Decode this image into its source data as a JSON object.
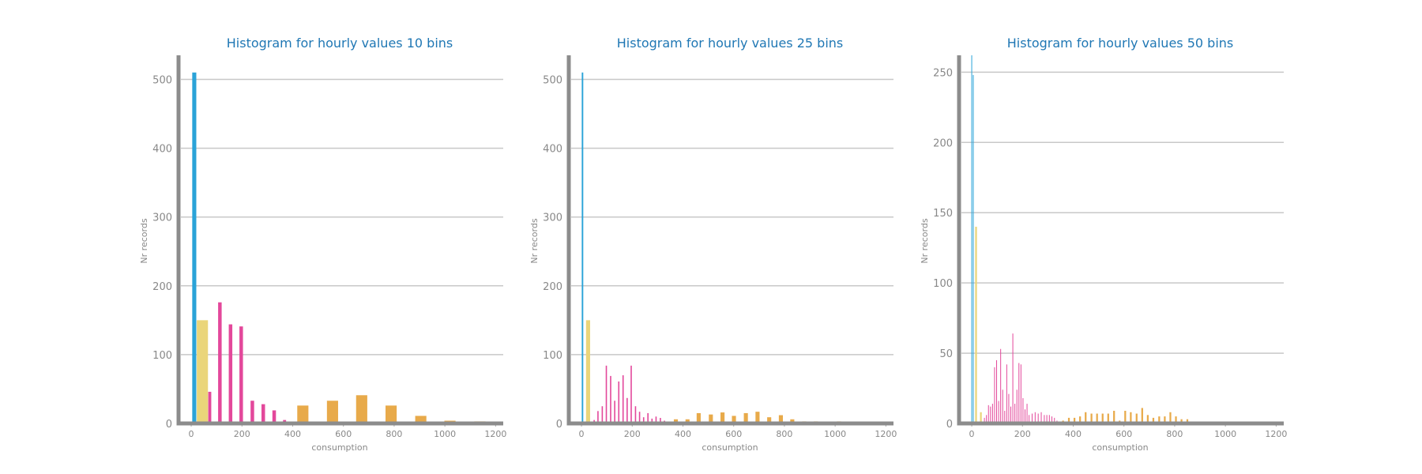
{
  "chart_data": [
    {
      "type": "bar",
      "title": "Histogram for hourly values 10 bins",
      "xlabel": "consumption",
      "ylabel": "Nr records",
      "xlim": [
        -50,
        1230
      ],
      "ylim": [
        0,
        535
      ],
      "xticks": [
        0,
        200,
        400,
        600,
        800,
        1000,
        1200
      ],
      "yticks": [
        0,
        100,
        200,
        300,
        400,
        500
      ],
      "grid": true,
      "series": [
        {
          "color": "#2aa3d8",
          "values": [
            {
              "x": 12,
              "y": 510,
              "w": 16
            }
          ]
        },
        {
          "color": "#ead57a",
          "values": [
            {
              "x": 44,
              "y": 150,
              "w": 44
            }
          ]
        },
        {
          "color": "#e3489b",
          "values": [
            {
              "x": 73,
              "y": 46,
              "w": 12
            },
            {
              "x": 113,
              "y": 176,
              "w": 14
            },
            {
              "x": 155,
              "y": 144,
              "w": 14
            },
            {
              "x": 197,
              "y": 141,
              "w": 14
            },
            {
              "x": 241,
              "y": 33,
              "w": 14
            },
            {
              "x": 284,
              "y": 28,
              "w": 14
            },
            {
              "x": 327,
              "y": 19,
              "w": 14
            },
            {
              "x": 368,
              "y": 5,
              "w": 12
            }
          ]
        },
        {
          "color": "#e8aa4a",
          "values": [
            {
              "x": 440,
              "y": 26,
              "w": 44
            },
            {
              "x": 557,
              "y": 33,
              "w": 44
            },
            {
              "x": 672,
              "y": 41,
              "w": 44
            },
            {
              "x": 788,
              "y": 26,
              "w": 44
            },
            {
              "x": 905,
              "y": 11,
              "w": 44
            },
            {
              "x": 1020,
              "y": 4,
              "w": 44
            },
            {
              "x": 1138,
              "y": 3,
              "w": 44
            }
          ]
        }
      ]
    },
    {
      "type": "bar",
      "title": "Histogram for hourly values 25 bins",
      "xlabel": "consumption",
      "ylabel": "Nr records",
      "xlim": [
        -50,
        1230
      ],
      "ylim": [
        0,
        535
      ],
      "xticks": [
        0,
        200,
        400,
        600,
        800,
        1000,
        1200
      ],
      "yticks": [
        0,
        100,
        200,
        300,
        400,
        500
      ],
      "grid": true,
      "series": [
        {
          "color": "#2aa3d8",
          "values": [
            {
              "x": 4,
              "y": 510,
              "w": 6
            }
          ]
        },
        {
          "color": "#ead57a",
          "values": [
            {
              "x": 26,
              "y": 150,
              "w": 16
            }
          ]
        },
        {
          "color": "#e3489b",
          "values": [
            {
              "x": 50,
              "y": 5,
              "w": 5
            },
            {
              "x": 65,
              "y": 18,
              "w": 5
            },
            {
              "x": 82,
              "y": 25,
              "w": 5
            },
            {
              "x": 98,
              "y": 84,
              "w": 5
            },
            {
              "x": 115,
              "y": 69,
              "w": 5
            },
            {
              "x": 131,
              "y": 33,
              "w": 5
            },
            {
              "x": 147,
              "y": 61,
              "w": 5
            },
            {
              "x": 164,
              "y": 70,
              "w": 5
            },
            {
              "x": 180,
              "y": 37,
              "w": 5
            },
            {
              "x": 196,
              "y": 84,
              "w": 5
            },
            {
              "x": 213,
              "y": 25,
              "w": 5
            },
            {
              "x": 229,
              "y": 17,
              "w": 5
            },
            {
              "x": 245,
              "y": 9,
              "w": 5
            },
            {
              "x": 262,
              "y": 15,
              "w": 5
            },
            {
              "x": 278,
              "y": 7,
              "w": 5
            },
            {
              "x": 294,
              "y": 10,
              "w": 5
            },
            {
              "x": 311,
              "y": 8,
              "w": 5
            },
            {
              "x": 327,
              "y": 4,
              "w": 5
            },
            {
              "x": 343,
              "y": 2,
              "w": 5
            }
          ]
        },
        {
          "color": "#e8aa4a",
          "values": [
            {
              "x": 372,
              "y": 6,
              "w": 16
            },
            {
              "x": 418,
              "y": 6,
              "w": 16
            },
            {
              "x": 462,
              "y": 15,
              "w": 16
            },
            {
              "x": 510,
              "y": 13,
              "w": 16
            },
            {
              "x": 556,
              "y": 16,
              "w": 16
            },
            {
              "x": 601,
              "y": 11,
              "w": 16
            },
            {
              "x": 648,
              "y": 15,
              "w": 16
            },
            {
              "x": 694,
              "y": 17,
              "w": 16
            },
            {
              "x": 740,
              "y": 9,
              "w": 16
            },
            {
              "x": 786,
              "y": 12,
              "w": 16
            },
            {
              "x": 831,
              "y": 6,
              "w": 16
            },
            {
              "x": 878,
              "y": 3,
              "w": 16
            },
            {
              "x": 924,
              "y": 3,
              "w": 16
            },
            {
              "x": 1015,
              "y": 3,
              "w": 16
            }
          ]
        }
      ]
    },
    {
      "type": "bar",
      "title": "Histogram for hourly values 50 bins",
      "xlabel": "consumption",
      "ylabel": "Nr records",
      "xlim": [
        -50,
        1230
      ],
      "ylim": [
        0,
        262
      ],
      "xticks": [
        0,
        200,
        400,
        600,
        800,
        1000,
        1200
      ],
      "yticks": [
        0,
        50,
        100,
        150,
        200,
        250
      ],
      "grid": true,
      "series": [
        {
          "color": "#2aa3d8",
          "values": [
            {
              "x": 0,
              "y": 262,
              "w": 3
            },
            {
              "x": 6,
              "y": 248,
              "w": 3
            }
          ]
        },
        {
          "color": "#ead57a",
          "values": [
            {
              "x": 17,
              "y": 140,
              "w": 7
            },
            {
              "x": 36,
              "y": 8,
              "w": 7
            }
          ]
        },
        {
          "color": "#e3489b",
          "values": [
            {
              "x": 50,
              "y": 4,
              "w": 2.5
            },
            {
              "x": 58,
              "y": 6,
              "w": 2.5
            },
            {
              "x": 66,
              "y": 13,
              "w": 2.5
            },
            {
              "x": 74,
              "y": 12,
              "w": 2.5
            },
            {
              "x": 82,
              "y": 14,
              "w": 2.5
            },
            {
              "x": 90,
              "y": 40,
              "w": 2.5
            },
            {
              "x": 98,
              "y": 45,
              "w": 2.5
            },
            {
              "x": 106,
              "y": 16,
              "w": 2.5
            },
            {
              "x": 114,
              "y": 53,
              "w": 2.5
            },
            {
              "x": 122,
              "y": 24,
              "w": 2.5
            },
            {
              "x": 130,
              "y": 9,
              "w": 2.5
            },
            {
              "x": 138,
              "y": 42,
              "w": 2.5
            },
            {
              "x": 146,
              "y": 21,
              "w": 2.5
            },
            {
              "x": 154,
              "y": 12,
              "w": 2.5
            },
            {
              "x": 162,
              "y": 64,
              "w": 2.5
            },
            {
              "x": 170,
              "y": 14,
              "w": 2.5
            },
            {
              "x": 178,
              "y": 24,
              "w": 2.5
            },
            {
              "x": 186,
              "y": 43,
              "w": 2.5
            },
            {
              "x": 194,
              "y": 42,
              "w": 2.5
            },
            {
              "x": 202,
              "y": 18,
              "w": 2.5
            },
            {
              "x": 210,
              "y": 10,
              "w": 2.5
            },
            {
              "x": 218,
              "y": 14,
              "w": 2.5
            },
            {
              "x": 226,
              "y": 6,
              "w": 2.5
            },
            {
              "x": 238,
              "y": 7,
              "w": 2.5
            },
            {
              "x": 250,
              "y": 8,
              "w": 2.5
            },
            {
              "x": 262,
              "y": 7,
              "w": 2.5
            },
            {
              "x": 274,
              "y": 8,
              "w": 2.5
            },
            {
              "x": 286,
              "y": 6,
              "w": 2.5
            },
            {
              "x": 296,
              "y": 6,
              "w": 2.5
            },
            {
              "x": 306,
              "y": 6,
              "w": 2.5
            },
            {
              "x": 316,
              "y": 5,
              "w": 2.5
            },
            {
              "x": 326,
              "y": 4,
              "w": 2.5
            },
            {
              "x": 336,
              "y": 2,
              "w": 2.5
            }
          ]
        },
        {
          "color": "#e8aa4a",
          "values": [
            {
              "x": 360,
              "y": 2,
              "w": 7
            },
            {
              "x": 383,
              "y": 4,
              "w": 7
            },
            {
              "x": 405,
              "y": 4,
              "w": 7
            },
            {
              "x": 427,
              "y": 5,
              "w": 7
            },
            {
              "x": 449,
              "y": 8,
              "w": 7
            },
            {
              "x": 472,
              "y": 7,
              "w": 7
            },
            {
              "x": 494,
              "y": 7,
              "w": 7
            },
            {
              "x": 516,
              "y": 7,
              "w": 7
            },
            {
              "x": 538,
              "y": 7,
              "w": 7
            },
            {
              "x": 561,
              "y": 9,
              "w": 7
            },
            {
              "x": 583,
              "y": 2,
              "w": 7
            },
            {
              "x": 605,
              "y": 9,
              "w": 7
            },
            {
              "x": 627,
              "y": 8,
              "w": 7
            },
            {
              "x": 650,
              "y": 7,
              "w": 7
            },
            {
              "x": 672,
              "y": 11,
              "w": 7
            },
            {
              "x": 694,
              "y": 6,
              "w": 7
            },
            {
              "x": 716,
              "y": 4,
              "w": 7
            },
            {
              "x": 739,
              "y": 5,
              "w": 7
            },
            {
              "x": 761,
              "y": 5,
              "w": 7
            },
            {
              "x": 783,
              "y": 8,
              "w": 7
            },
            {
              "x": 805,
              "y": 5,
              "w": 7
            },
            {
              "x": 827,
              "y": 3,
              "w": 7
            },
            {
              "x": 850,
              "y": 3,
              "w": 7
            },
            {
              "x": 900,
              "y": 1,
              "w": 7
            },
            {
              "x": 930,
              "y": 1,
              "w": 7
            },
            {
              "x": 1000,
              "y": 1,
              "w": 7
            },
            {
              "x": 1030,
              "y": 1,
              "w": 7
            },
            {
              "x": 1150,
              "y": 1,
              "w": 7
            },
            {
              "x": 1190,
              "y": 1,
              "w": 7
            }
          ]
        }
      ]
    }
  ]
}
